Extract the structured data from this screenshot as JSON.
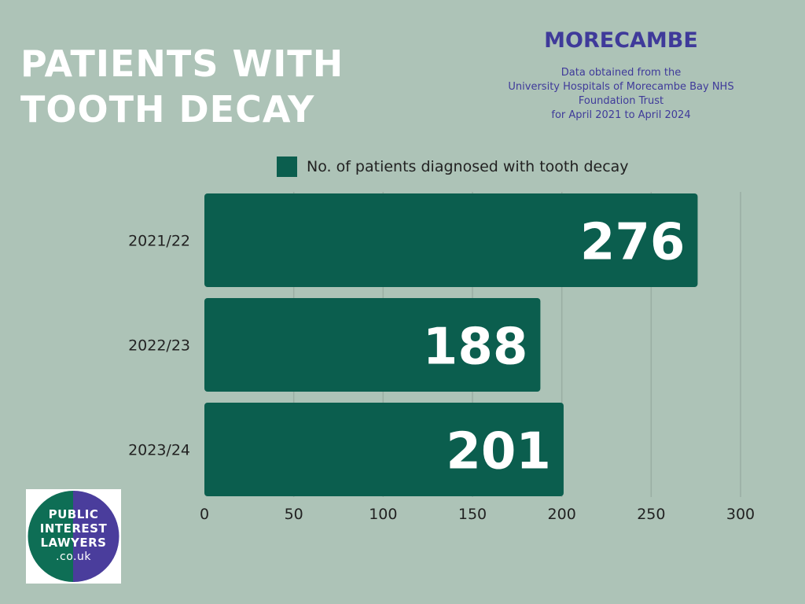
{
  "header": {
    "title_lines": [
      "PATIENTS WITH",
      "TOOTH DECAY"
    ],
    "location": "MORECAMBE",
    "source_lines": [
      "Data obtained from the",
      "University Hospitals of Morecambe Bay NHS",
      "Foundation Trust",
      "for April 2021 to April 2024"
    ]
  },
  "logo": {
    "lines": [
      "PUBLIC",
      "INTEREST",
      "LAWYERS",
      ".co.uk"
    ],
    "colors": {
      "left": "#0e6e55",
      "right": "#4a3d9c"
    }
  },
  "colors": {
    "background": "#adc3b7",
    "bar": "#0b5e4e",
    "title": "#ffffff",
    "accent": "#3f3a9a",
    "grid": "#9aaea3"
  },
  "chart_data": {
    "type": "bar",
    "orientation": "horizontal",
    "categories": [
      "2021/22",
      "2022/23",
      "2023/24"
    ],
    "series": [
      {
        "name": "No. of patients diagnosed with tooth decay",
        "values": [
          276,
          188,
          201
        ]
      }
    ],
    "xlim": [
      0,
      300
    ],
    "xticks": [
      "0",
      "50",
      "100",
      "150",
      "200",
      "250",
      "300"
    ],
    "data_labels": [
      "276",
      "188",
      "201"
    ],
    "grid": true,
    "legend_position": "top"
  }
}
